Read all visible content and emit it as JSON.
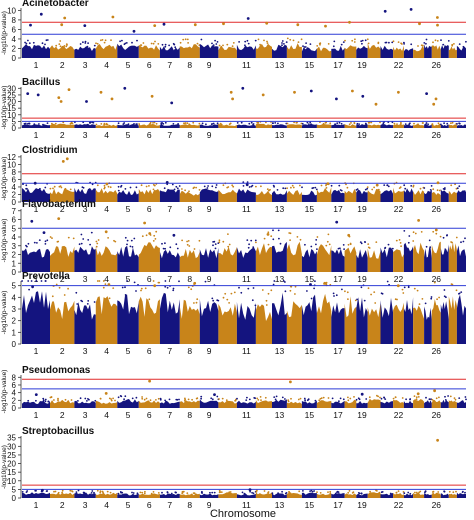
{
  "figure": {
    "xlabel": "Chromosome",
    "ylabel": "-log10(p-value)",
    "colors": {
      "odd": "#14147f",
      "even": "#c8841a",
      "suggestive": "#2e3bd6",
      "significant": "#e02a2a"
    }
  },
  "chart_data": [
    {
      "type": "scatter",
      "title": "Acinetobacter",
      "ylabel": "-log10(p-value)",
      "yticks": [
        0,
        2,
        4,
        6,
        8,
        10
      ],
      "ylim": [
        0,
        10.5
      ],
      "suggestive_line": 5,
      "significant_line": 7.5,
      "xticks": [
        "1",
        "2",
        "3",
        "4",
        "5",
        "6",
        "7",
        "8",
        "9",
        "11",
        "13",
        "15",
        "17",
        "19",
        "22",
        "26"
      ],
      "peaks": [
        [
          1,
          9.2
        ],
        [
          1,
          6.9
        ],
        [
          2,
          8.4
        ],
        [
          2,
          7.0
        ],
        [
          3,
          6.8
        ],
        [
          4,
          8.6
        ],
        [
          5,
          5.6
        ],
        [
          6,
          6.8
        ],
        [
          7,
          7.1
        ],
        [
          8,
          7.0
        ],
        [
          10,
          7.2
        ],
        [
          11,
          8.3
        ],
        [
          12,
          7.3
        ],
        [
          14,
          7.0
        ],
        [
          16,
          6.7
        ],
        [
          18,
          7.5
        ],
        [
          21,
          9.8
        ],
        [
          23,
          10.2
        ],
        [
          24,
          7.2
        ],
        [
          26,
          8.5
        ],
        [
          26,
          6.9
        ]
      ]
    },
    {
      "type": "scatter",
      "title": "Bacillus",
      "ylabel": "-log10(p-value)",
      "yticks": [
        0,
        5,
        10,
        15,
        20,
        25,
        30
      ],
      "ylim": [
        0,
        31
      ],
      "suggestive_line": 5,
      "significant_line": 7.5,
      "xticks": [
        "1",
        "2",
        "3",
        "4",
        "5",
        "6",
        "7",
        "8",
        "9",
        "11",
        "13",
        "15",
        "17",
        "19",
        "22",
        "26"
      ],
      "peaks": [
        [
          1,
          26
        ],
        [
          1,
          25
        ],
        [
          2,
          29
        ],
        [
          2,
          23
        ],
        [
          2,
          20
        ],
        [
          3,
          20
        ],
        [
          4,
          27
        ],
        [
          4,
          22
        ],
        [
          5,
          30
        ],
        [
          6,
          24
        ],
        [
          7,
          19
        ],
        [
          10,
          27
        ],
        [
          10,
          22
        ],
        [
          11,
          30
        ],
        [
          12,
          25
        ],
        [
          14,
          27
        ],
        [
          15,
          28
        ],
        [
          17,
          22
        ],
        [
          18,
          28
        ],
        [
          19,
          24
        ],
        [
          20,
          18
        ],
        [
          22,
          27
        ],
        [
          25,
          26
        ],
        [
          26,
          22
        ],
        [
          26,
          18
        ]
      ]
    },
    {
      "type": "scatter",
      "title": "Clostridium",
      "ylabel": "-log10(p-value)",
      "yticks": [
        0,
        2,
        4,
        6,
        8,
        10,
        12
      ],
      "ylim": [
        0,
        12.5
      ],
      "suggestive_line": 5,
      "significant_line": 7.5,
      "xticks": [
        "1",
        "2",
        "3",
        "4",
        "5",
        "6",
        "7",
        "8",
        "9",
        "11",
        "13",
        "15",
        "17",
        "19",
        "22",
        "26"
      ],
      "peaks": [
        [
          2,
          11.5
        ],
        [
          2,
          10.8
        ],
        [
          1,
          5.0
        ],
        [
          4,
          4.8
        ],
        [
          7,
          5.2
        ],
        [
          11,
          4.6
        ],
        [
          16,
          4.9
        ],
        [
          20,
          4.5
        ],
        [
          26,
          5.1
        ]
      ]
    },
    {
      "type": "scatter",
      "title": "Flavobacterium",
      "ylabel": "-log10(p-value)",
      "yticks": [
        0,
        1,
        2,
        3,
        4,
        5,
        6,
        7
      ],
      "ylim": [
        0,
        7.2
      ],
      "suggestive_line": 5,
      "significant_line": null,
      "xticks": [
        "1",
        "2",
        "3",
        "4",
        "5",
        "6",
        "7",
        "8",
        "9",
        "11",
        "13",
        "15",
        "17",
        "19",
        "22",
        "26"
      ],
      "peaks": [
        [
          1,
          5.8
        ],
        [
          2,
          6.1
        ],
        [
          1,
          4.5
        ],
        [
          4,
          4.6
        ],
        [
          6,
          5.6
        ],
        [
          6,
          4.4
        ],
        [
          7,
          4.2
        ],
        [
          12,
          4.3
        ],
        [
          17,
          5.7
        ],
        [
          18,
          4.2
        ],
        [
          24,
          5.9
        ],
        [
          26,
          4.8
        ]
      ]
    },
    {
      "type": "scatter",
      "title": "Prevotella",
      "ylabel": "-log10(p-value)",
      "yticks": [
        0,
        1,
        2,
        3,
        4,
        5
      ],
      "ylim": [
        0,
        5.4
      ],
      "suggestive_line": 5,
      "significant_line": null,
      "xticks": [
        "1",
        "2",
        "3",
        "4",
        "5",
        "6",
        "7",
        "8",
        "9",
        "11",
        "13",
        "15",
        "17",
        "19",
        "22",
        "26"
      ],
      "peaks": [
        [
          1,
          4.9
        ],
        [
          4,
          5.1
        ],
        [
          6,
          5.0
        ],
        [
          8,
          5.2
        ],
        [
          15,
          5.1
        ],
        [
          16,
          5.2
        ],
        [
          22,
          5.0
        ]
      ]
    },
    {
      "type": "scatter",
      "title": "Pseudomonas",
      "ylabel": "-log10(p-value)",
      "yticks": [
        0,
        2,
        4,
        6,
        8
      ],
      "ylim": [
        0,
        8.6
      ],
      "suggestive_line": 5,
      "significant_line": 7.5,
      "xticks": [
        "1",
        "2",
        "3",
        "4",
        "5",
        "6",
        "7",
        "8",
        "9",
        "11",
        "13",
        "15",
        "17",
        "19",
        "22",
        "26"
      ],
      "peaks": [
        [
          6,
          7.0
        ],
        [
          14,
          6.8
        ],
        [
          1,
          3.5
        ],
        [
          4,
          3.8
        ],
        [
          9,
          3.5
        ],
        [
          19,
          3.6
        ],
        [
          24,
          3.7
        ],
        [
          26,
          4.5
        ]
      ]
    },
    {
      "type": "scatter",
      "title": "Streptobacillus",
      "ylabel": "-log10(p-value)",
      "yticks": [
        0,
        5,
        10,
        15,
        20,
        25,
        30,
        35
      ],
      "ylim": [
        0,
        36
      ],
      "suggestive_line": 5,
      "significant_line": 7.5,
      "xticks": [
        "1",
        "2",
        "3",
        "4",
        "5",
        "6",
        "7",
        "8",
        "9",
        "11",
        "13",
        "15",
        "17",
        "19",
        "22",
        "26"
      ],
      "peaks": [
        [
          26,
          33.5
        ],
        [
          1,
          4.5
        ],
        [
          11,
          4.8
        ]
      ]
    }
  ]
}
